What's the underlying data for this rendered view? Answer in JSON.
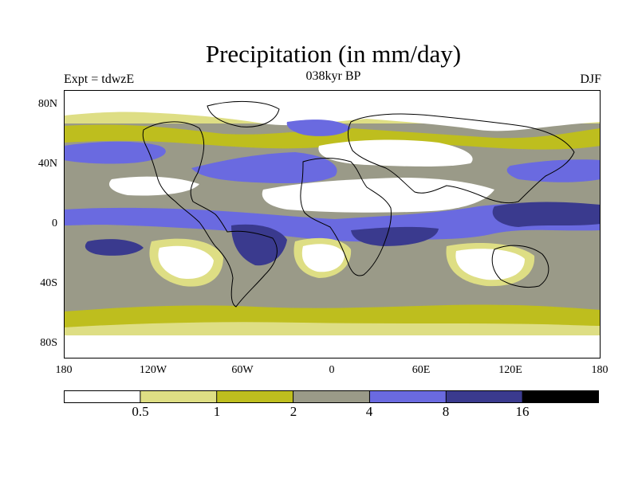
{
  "title": "Precipitation (in mm/day)",
  "experiment": "Expt = tdwzE",
  "period": "038kyr BP",
  "season": "DJF",
  "lat_ticks": [
    "80N",
    "40N",
    "0",
    "40S",
    "80S"
  ],
  "lon_ticks": [
    "180",
    "120W",
    "60W",
    "0",
    "60E",
    "120E",
    "180"
  ],
  "colorbar": {
    "colors": [
      "#ffffff",
      "#dede84",
      "#bebe1e",
      "#9a9a88",
      "#6a6ae0",
      "#3a3a8e",
      "#000000"
    ],
    "labels": [
      "0.5",
      "1",
      "2",
      "4",
      "8",
      "16"
    ]
  }
}
